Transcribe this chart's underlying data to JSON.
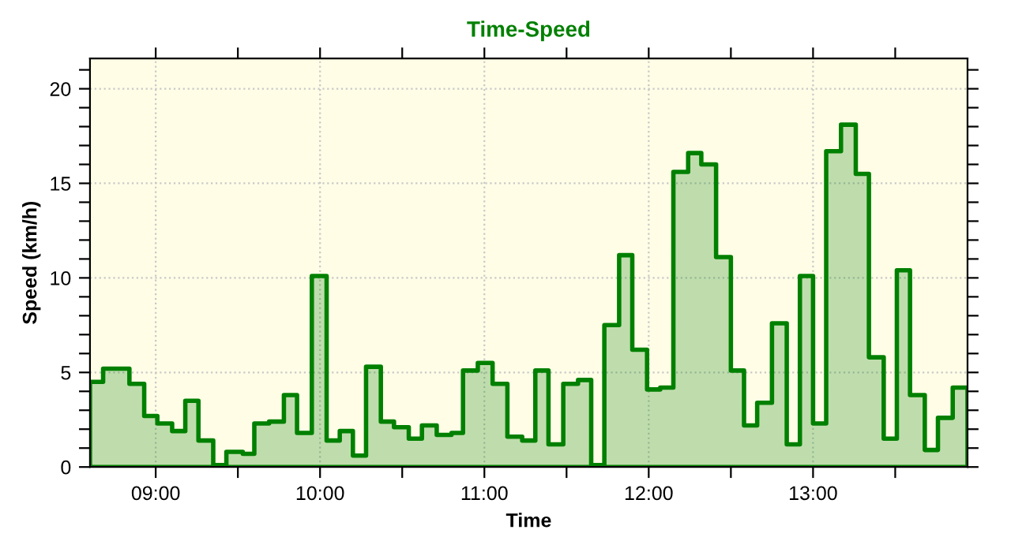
{
  "chart_data": {
    "type": "area",
    "title": "Time-Speed",
    "xlabel": "Time",
    "ylabel": "Speed (km/h)",
    "x": [
      8.6,
      8.68,
      8.84,
      8.93,
      9.01,
      9.1,
      9.18,
      9.26,
      9.35,
      9.43,
      9.53,
      9.6,
      9.69,
      9.78,
      9.86,
      9.95,
      10.04,
      10.12,
      10.2,
      10.28,
      10.37,
      10.45,
      10.54,
      10.62,
      10.71,
      10.8,
      10.87,
      10.96,
      11.05,
      11.14,
      11.23,
      11.31,
      11.39,
      11.48,
      11.57,
      11.65,
      11.73,
      11.82,
      11.9,
      11.99,
      12.07,
      12.15,
      12.24,
      12.32,
      12.41,
      12.5,
      12.58,
      12.66,
      12.75,
      12.84,
      12.92,
      13.0,
      13.08,
      13.17,
      13.26,
      13.34,
      13.43,
      13.51,
      13.59,
      13.68,
      13.76,
      13.85,
      13.94
    ],
    "series": [
      {
        "color": "#008000",
        "values": [
          4.5,
          5.2,
          4.4,
          2.7,
          2.3,
          1.9,
          3.5,
          1.4,
          0.1,
          0.8,
          0.7,
          2.3,
          2.4,
          3.8,
          1.8,
          10.1,
          1.4,
          1.9,
          0.6,
          5.3,
          2.4,
          2.1,
          1.5,
          2.2,
          1.7,
          1.8,
          5.1,
          5.5,
          4.4,
          1.6,
          1.4,
          5.1,
          1.2,
          4.4,
          4.6,
          0.1,
          7.5,
          11.2,
          6.2,
          4.1,
          4.2,
          15.6,
          16.6,
          16.0,
          11.1,
          5.1,
          2.2,
          3.4,
          7.6,
          1.2,
          10.1,
          2.3,
          16.7,
          18.1,
          15.5,
          5.8,
          1.5,
          10.4,
          3.8,
          0.9,
          2.6,
          4.2,
          4.2
        ]
      }
    ],
    "xlim": [
      8.6,
      13.94
    ],
    "xticks": [
      {
        "value": 9,
        "label": "09:00"
      },
      {
        "value": 9.5,
        "label": null
      },
      {
        "value": 10,
        "label": "10:00"
      },
      {
        "value": 10.5,
        "label": null
      },
      {
        "value": 11,
        "label": "11:00"
      },
      {
        "value": 11.5,
        "label": null
      },
      {
        "value": 12,
        "label": "12:00"
      },
      {
        "value": 12.5,
        "label": null
      },
      {
        "value": 13,
        "label": "13:00"
      },
      {
        "value": 13.5,
        "label": null
      }
    ],
    "ylim": [
      0,
      21.6
    ],
    "yticks": [
      0,
      {
        "value": 1,
        "label": null
      },
      {
        "value": 2,
        "label": null
      },
      {
        "value": 3,
        "label": null
      },
      {
        "value": 4,
        "label": null
      },
      5,
      {
        "value": 6,
        "label": null
      },
      {
        "value": 7,
        "label": null
      },
      {
        "value": 8,
        "label": null
      },
      {
        "value": 9,
        "label": null
      },
      10,
      {
        "value": 11,
        "label": null
      },
      {
        "value": 12,
        "label": null
      },
      {
        "value": 13,
        "label": null
      },
      {
        "value": 14,
        "label": null
      },
      15,
      {
        "value": 16,
        "label": null
      },
      {
        "value": 17,
        "label": null
      },
      {
        "value": 18,
        "label": null
      },
      {
        "value": 19,
        "label": null
      },
      20,
      {
        "value": 21,
        "label": null
      }
    ],
    "grid": true,
    "line_style": "solid"
  }
}
